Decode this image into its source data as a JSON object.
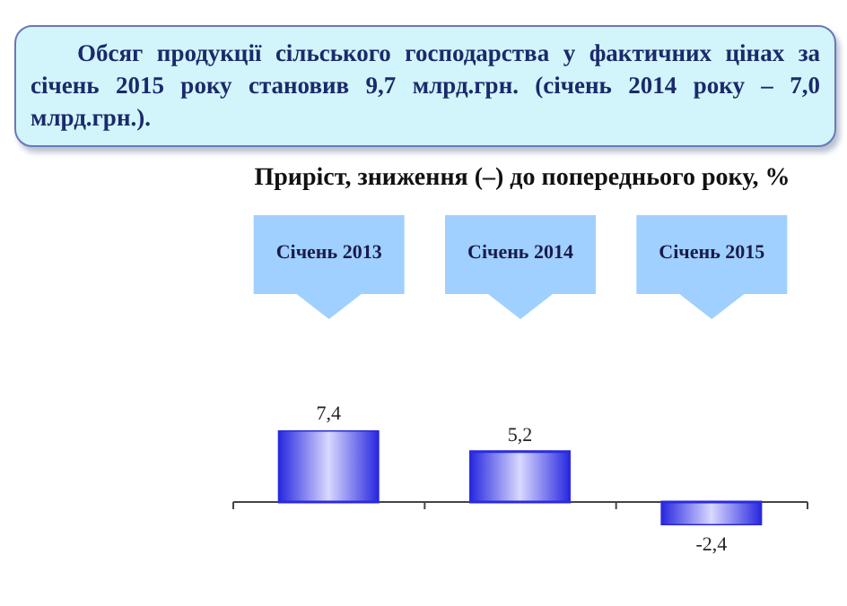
{
  "chart_data": {
    "type": "bar",
    "title": "Обсяг продукції сільського господарства у фактичних цінах за січень 2015 року становив 9,7 млрд.грн. (січень 2014 року – 7,0 млрд.грн.).",
    "subtitle": "Приріст, зниження (–) до попереднього року, %",
    "categories": [
      "Січень 2013",
      "Січень 2014",
      "Січень 2015"
    ],
    "values": [
      7.4,
      5.2,
      -2.4
    ],
    "value_labels": [
      "7,4",
      "5,2",
      "-2,4"
    ],
    "color": "#2a2ae0"
  }
}
